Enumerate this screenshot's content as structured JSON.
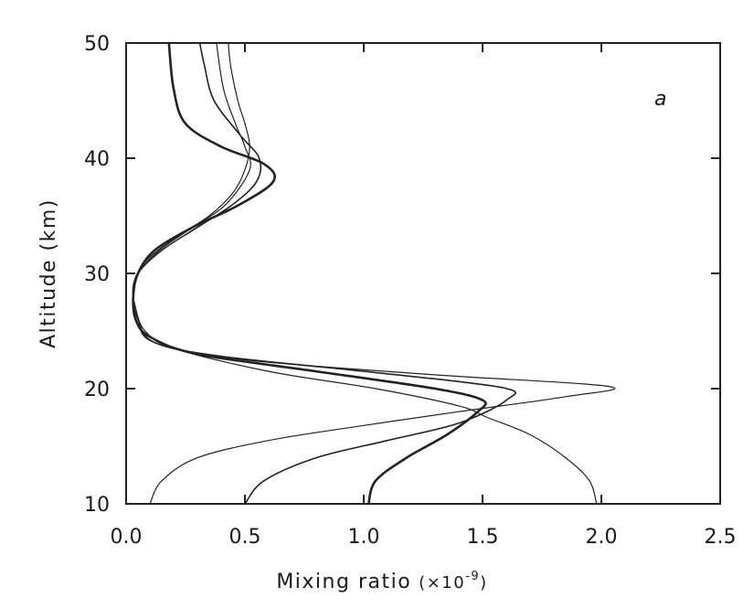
{
  "chart_data": {
    "type": "line",
    "panel_label": "a",
    "xlabel": "Mixing ratio",
    "xlabel_unit_prefix": "(×10",
    "xlabel_unit_exp": "-9",
    "xlabel_unit_suffix": ")",
    "ylabel": "Altitude (km)",
    "xlim": [
      0.0,
      2.5
    ],
    "ylim": [
      10,
      50
    ],
    "x_ticks": [
      0.0,
      0.5,
      1.0,
      1.5,
      2.0,
      2.5
    ],
    "x_tick_labels": [
      "0.0",
      "0.5",
      "1.0",
      "1.5",
      "2.0",
      "2.5"
    ],
    "y_ticks": [
      10,
      20,
      30,
      40,
      50
    ],
    "y_tick_labels": [
      "10",
      "20",
      "30",
      "40",
      "50"
    ],
    "grid": false,
    "colors": {
      "line": "#222222",
      "axis": "#222222",
      "background": "#ffffff"
    },
    "series": [
      {
        "style": "thin",
        "points": [
          [
            0.1,
            10
          ],
          [
            0.15,
            12
          ],
          [
            0.3,
            14
          ],
          [
            0.6,
            15.5
          ],
          [
            1.0,
            16.8
          ],
          [
            1.4,
            18
          ],
          [
            1.85,
            19.3
          ],
          [
            2.03,
            20.2
          ],
          [
            1.3,
            21.2
          ],
          [
            0.5,
            22.5
          ],
          [
            0.12,
            24
          ],
          [
            0.05,
            26
          ],
          [
            0.03,
            28
          ],
          [
            0.05,
            30
          ],
          [
            0.14,
            32
          ],
          [
            0.28,
            34
          ],
          [
            0.42,
            36
          ],
          [
            0.52,
            39
          ],
          [
            0.5,
            41
          ],
          [
            0.46,
            43
          ],
          [
            0.41,
            46
          ],
          [
            0.38,
            50
          ]
        ]
      },
      {
        "style": "medium",
        "points": [
          [
            0.5,
            10
          ],
          [
            0.58,
            12
          ],
          [
            0.8,
            14
          ],
          [
            1.1,
            15.5
          ],
          [
            1.4,
            17
          ],
          [
            1.6,
            19
          ],
          [
            1.58,
            20.1
          ],
          [
            1.0,
            21.5
          ],
          [
            0.4,
            22.8
          ],
          [
            0.12,
            24
          ],
          [
            0.05,
            26
          ],
          [
            0.03,
            28
          ],
          [
            0.05,
            30
          ],
          [
            0.15,
            32
          ],
          [
            0.3,
            34
          ],
          [
            0.45,
            36
          ],
          [
            0.55,
            38
          ],
          [
            0.56,
            40
          ],
          [
            0.48,
            42
          ],
          [
            0.37,
            45
          ],
          [
            0.33,
            48
          ],
          [
            0.31,
            50
          ]
        ]
      },
      {
        "style": "thick",
        "points": [
          [
            1.02,
            10
          ],
          [
            1.05,
            12
          ],
          [
            1.18,
            14
          ],
          [
            1.35,
            16
          ],
          [
            1.48,
            18
          ],
          [
            1.5,
            19
          ],
          [
            1.3,
            20
          ],
          [
            0.8,
            21.5
          ],
          [
            0.3,
            23
          ],
          [
            0.1,
            24.5
          ],
          [
            0.04,
            26
          ],
          [
            0.03,
            28
          ],
          [
            0.05,
            30
          ],
          [
            0.12,
            32
          ],
          [
            0.28,
            34
          ],
          [
            0.48,
            36
          ],
          [
            0.62,
            38
          ],
          [
            0.58,
            39.5
          ],
          [
            0.4,
            41
          ],
          [
            0.25,
            43
          ],
          [
            0.2,
            46
          ],
          [
            0.18,
            50
          ]
        ]
      },
      {
        "style": "thin",
        "points": [
          [
            1.98,
            10
          ],
          [
            1.95,
            12
          ],
          [
            1.85,
            14
          ],
          [
            1.7,
            16
          ],
          [
            1.52,
            17.5
          ],
          [
            1.4,
            18.5
          ],
          [
            1.05,
            20
          ],
          [
            0.6,
            21.5
          ],
          [
            0.2,
            23.5
          ],
          [
            0.08,
            25
          ],
          [
            0.04,
            27
          ],
          [
            0.03,
            29
          ],
          [
            0.08,
            31
          ],
          [
            0.2,
            33
          ],
          [
            0.35,
            35
          ],
          [
            0.45,
            37
          ],
          [
            0.5,
            39
          ],
          [
            0.52,
            41
          ],
          [
            0.5,
            43
          ],
          [
            0.47,
            45
          ],
          [
            0.44,
            48
          ],
          [
            0.43,
            50
          ]
        ]
      }
    ]
  }
}
